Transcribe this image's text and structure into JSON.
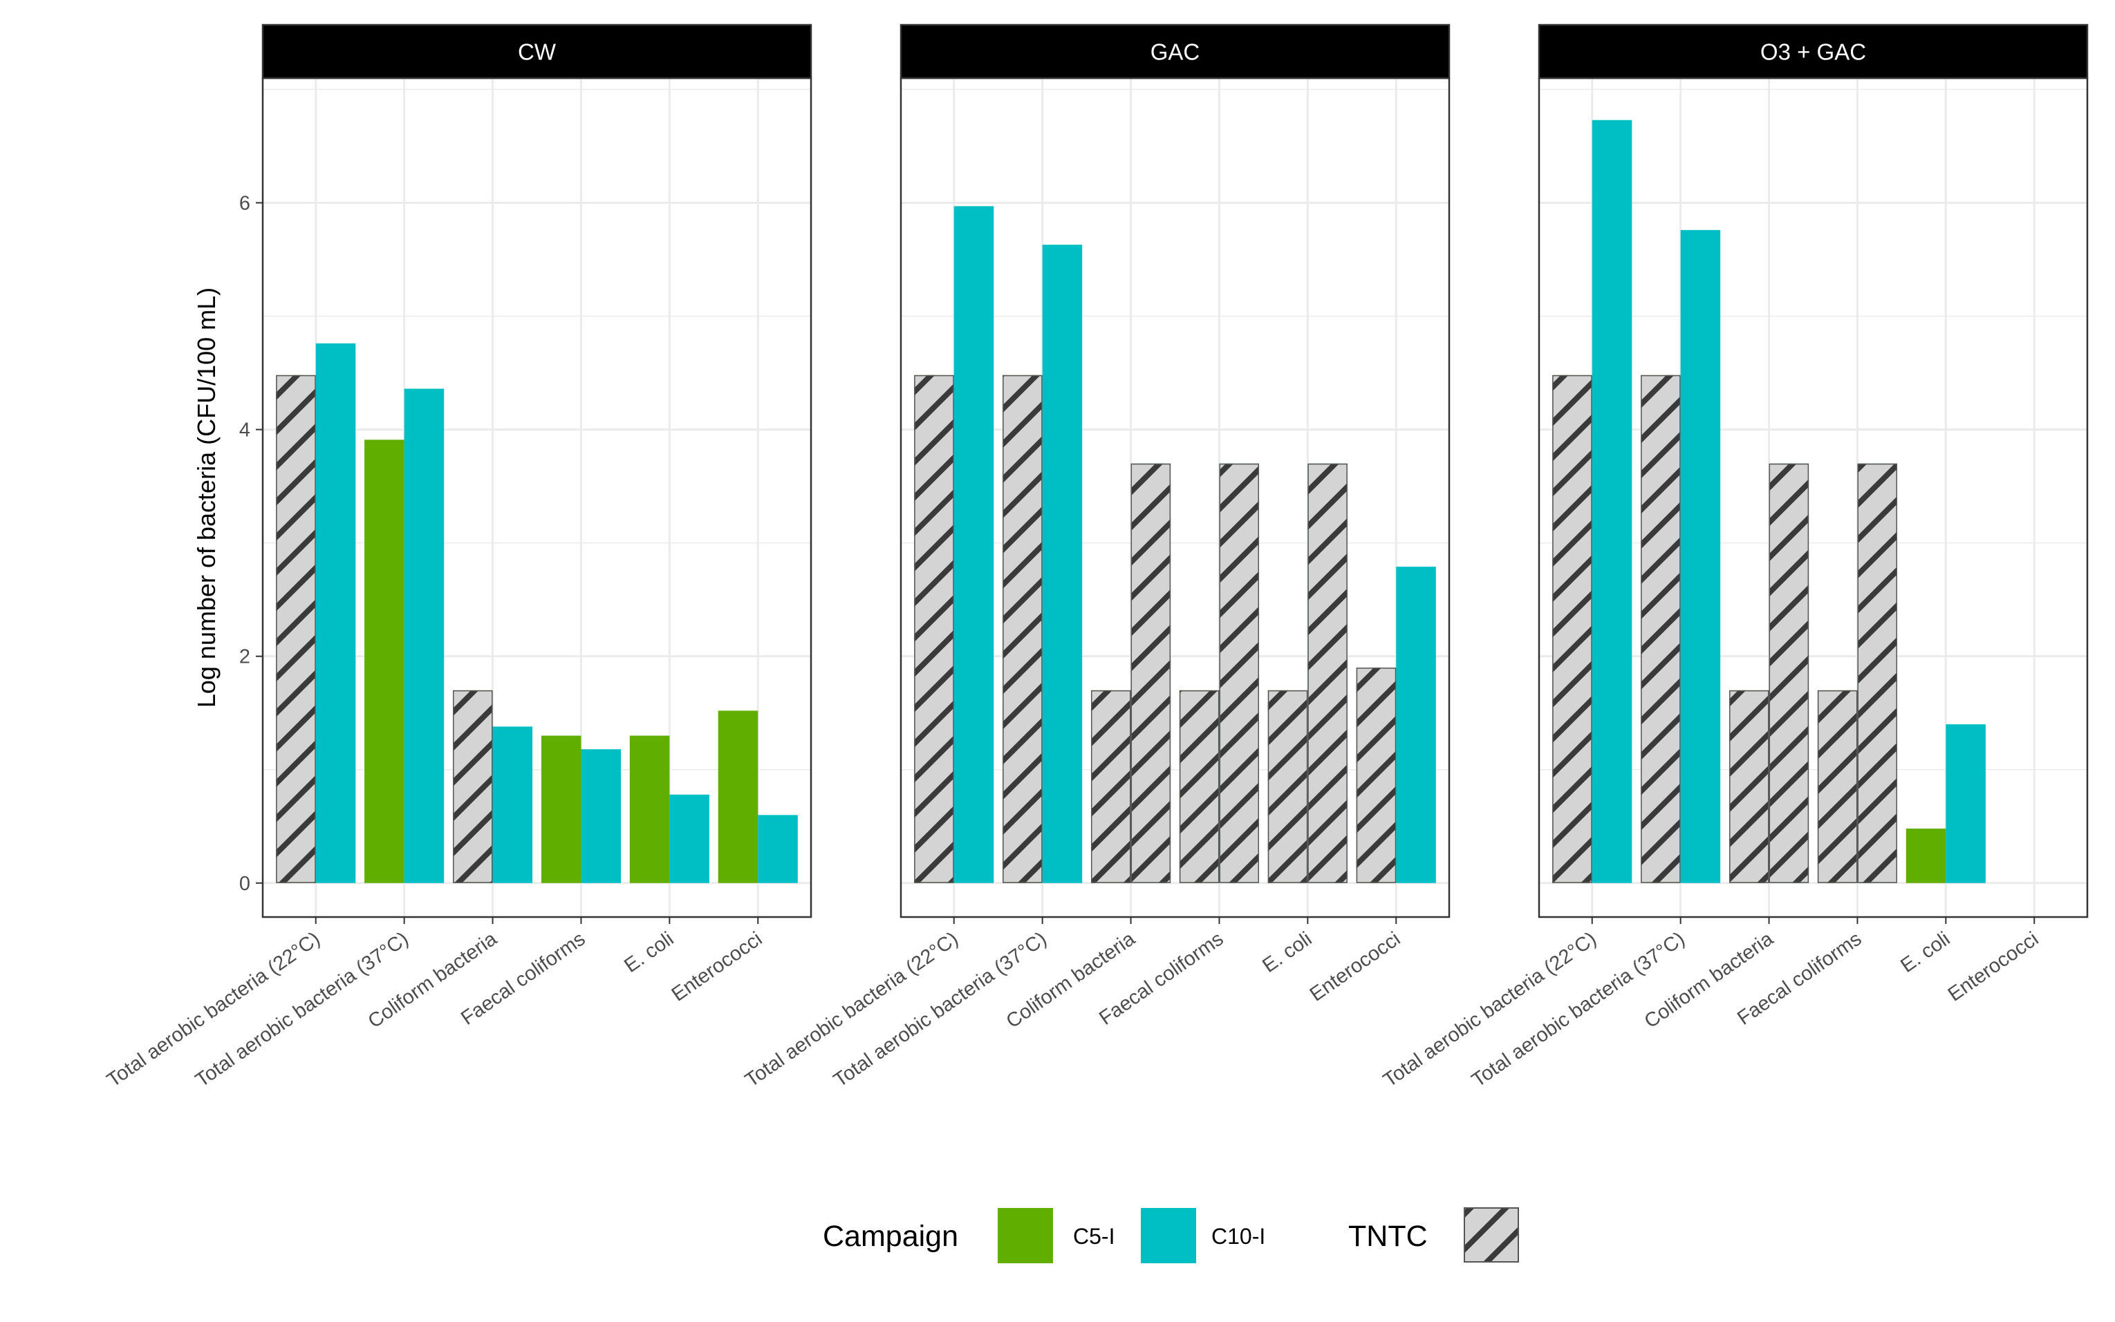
{
  "chart_data": {
    "type": "bar",
    "ylabel": "Log number of bacteria (CFU/100 mL)",
    "xlabel": "",
    "ylim": [
      -0.3,
      7.1
    ],
    "yticks": [
      0,
      2,
      4,
      6
    ],
    "grid": true,
    "categories": [
      "Total aerobic bacteria (22°C)",
      "Total aerobic bacteria (37°C)",
      "Coliform bacteria",
      "Faecal coliforms",
      "E. coli",
      "Enterococci"
    ],
    "panels": [
      {
        "title": "CW",
        "series": [
          {
            "name": "C5-I",
            "values": [
              4.48,
              3.91,
              1.7,
              1.3,
              1.3,
              1.52
            ],
            "tntc": [
              true,
              false,
              true,
              false,
              false,
              false
            ]
          },
          {
            "name": "C10-I",
            "values": [
              4.76,
              4.36,
              1.38,
              1.18,
              0.78,
              0.6
            ],
            "tntc": [
              false,
              false,
              false,
              false,
              false,
              false
            ]
          }
        ]
      },
      {
        "title": "GAC",
        "series": [
          {
            "name": "C5-I",
            "values": [
              4.48,
              4.48,
              1.7,
              1.7,
              1.7,
              1.9
            ],
            "tntc": [
              true,
              true,
              true,
              true,
              true,
              true
            ]
          },
          {
            "name": "C10-I",
            "values": [
              5.97,
              5.63,
              3.7,
              3.7,
              3.7,
              2.79
            ],
            "tntc": [
              false,
              false,
              true,
              true,
              true,
              false
            ]
          }
        ]
      },
      {
        "title": "O3 + GAC",
        "series": [
          {
            "name": "C5-I",
            "values": [
              4.48,
              4.48,
              1.7,
              1.7,
              0.48,
              null
            ],
            "tntc": [
              true,
              true,
              true,
              true,
              false,
              false
            ]
          },
          {
            "name": "C10-I",
            "values": [
              6.73,
              5.76,
              3.7,
              3.7,
              1.4,
              null
            ],
            "tntc": [
              false,
              false,
              true,
              true,
              false,
              false
            ]
          }
        ]
      }
    ],
    "legend": {
      "position": "bottom",
      "title": "Campaign",
      "entries": [
        {
          "name": "C5-I",
          "color": "#5fae00"
        },
        {
          "name": "C10-I",
          "color": "#00bfc4"
        }
      ],
      "tntc_label": "TNTC"
    }
  },
  "colors": {
    "c5": "#5fae00",
    "c10": "#00bfc4",
    "hatch_bg": "#d4d4d4",
    "hatch_line": "#3a3a3a",
    "strip_bg": "#000000",
    "grid": "#ebebeb",
    "panel_border": "#333333"
  }
}
